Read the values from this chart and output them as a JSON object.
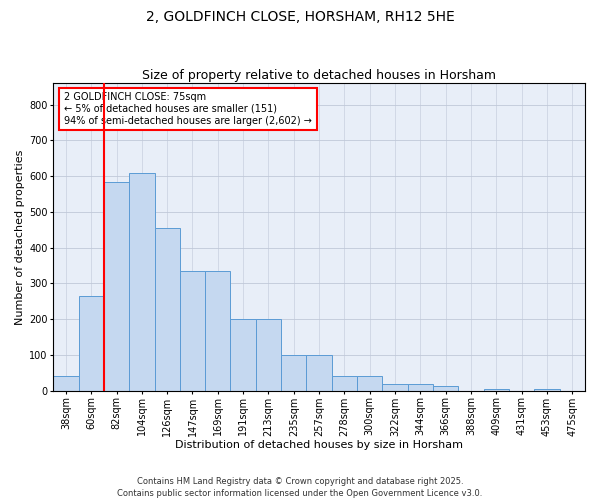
{
  "title": "2, GOLDFINCH CLOSE, HORSHAM, RH12 5HE",
  "subtitle": "Size of property relative to detached houses in Horsham",
  "xlabel": "Distribution of detached houses by size in Horsham",
  "ylabel": "Number of detached properties",
  "categories": [
    "38sqm",
    "60sqm",
    "82sqm",
    "104sqm",
    "126sqm",
    "147sqm",
    "169sqm",
    "191sqm",
    "213sqm",
    "235sqm",
    "257sqm",
    "278sqm",
    "300sqm",
    "322sqm",
    "344sqm",
    "366sqm",
    "388sqm",
    "409sqm",
    "431sqm",
    "453sqm",
    "475sqm"
  ],
  "values": [
    40,
    265,
    585,
    610,
    455,
    335,
    335,
    200,
    200,
    100,
    100,
    42,
    42,
    20,
    18,
    12,
    0,
    4,
    0,
    4,
    0
  ],
  "bar_color": "#c5d8f0",
  "bar_edge_color": "#5b9bd5",
  "vline_color": "red",
  "annotation_text": "2 GOLDFINCH CLOSE: 75sqm\n← 5% of detached houses are smaller (151)\n94% of semi-detached houses are larger (2,602) →",
  "annotation_box_color": "white",
  "annotation_box_edge": "red",
  "ylim": [
    0,
    860
  ],
  "yticks": [
    0,
    100,
    200,
    300,
    400,
    500,
    600,
    700,
    800
  ],
  "grid_color": "#c0c8d8",
  "background_color": "#e8eef8",
  "footer_text": "Contains HM Land Registry data © Crown copyright and database right 2025.\nContains public sector information licensed under the Open Government Licence v3.0.",
  "title_fontsize": 10,
  "subtitle_fontsize": 9,
  "xlabel_fontsize": 8,
  "ylabel_fontsize": 8,
  "tick_fontsize": 7,
  "annotation_fontsize": 7,
  "footer_fontsize": 6
}
